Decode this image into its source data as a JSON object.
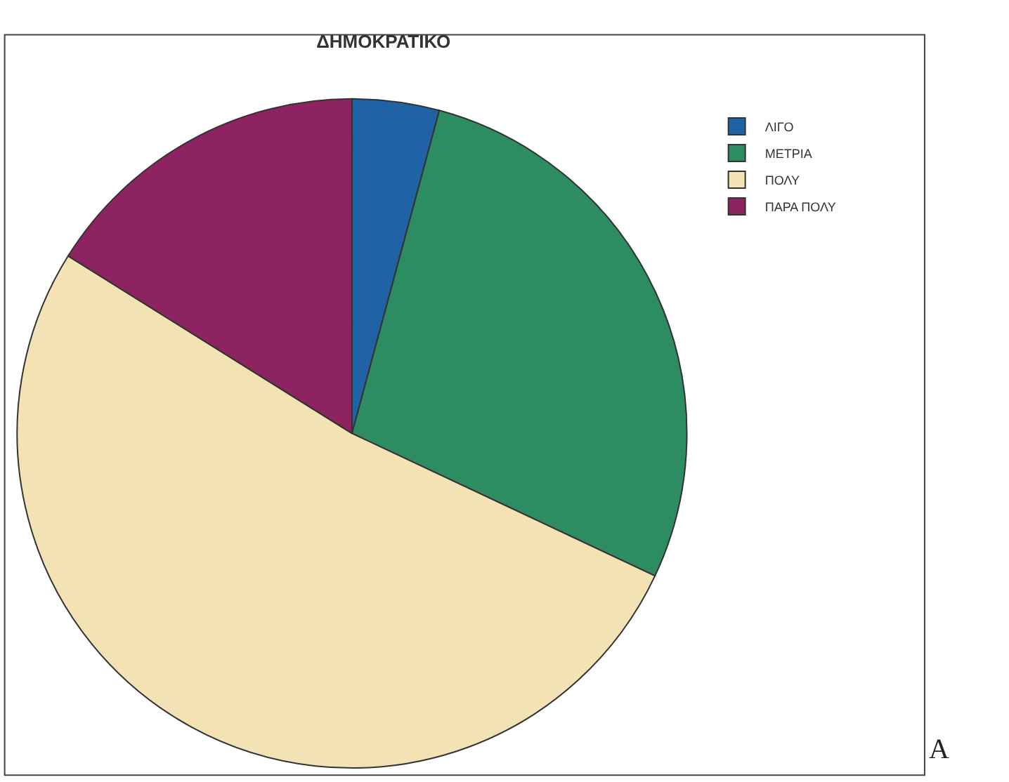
{
  "chart_data": {
    "type": "pie",
    "title": "ΔΗΜΟΚΡΑΤΙΚΟ",
    "categories": [
      "ΛΙΓΟ",
      "ΜΕΤΡΙΑ",
      "ΠΟΛΥ",
      "ΠΑΡΑ ΠΟΛΥ"
    ],
    "values": [
      4.2,
      27.8,
      51.9,
      16.1
    ],
    "colors": [
      "#1f62a6",
      "#2e8c62",
      "#f2e2b4",
      "#8e2362"
    ],
    "legend": "top right",
    "annotations": [
      "A"
    ]
  }
}
